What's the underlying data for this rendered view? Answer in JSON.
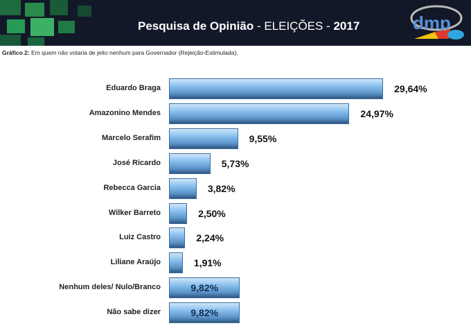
{
  "header": {
    "title_bold": "Pesquisa de Opinião",
    "title_rest": " - ELEIÇÕES - ",
    "year": "2017",
    "logo_text": "dmp"
  },
  "subtitle": {
    "label": "Gráfico 2:",
    "text": " Em quem não votaria de jeito nenhum para Governador (Rejeição-Estimulada)."
  },
  "chart_data": {
    "type": "bar",
    "orientation": "horizontal",
    "title": "Em quem não votaria de jeito nenhum para Governador (Rejeição-Estimulada)",
    "categories": [
      "Eduardo Braga",
      "Amazonino Mendes",
      "Marcelo Serafim",
      "José Ricardo",
      "Rebecca Garcia",
      "Wilker Barreto",
      "Luiz Castro",
      "Liliane Araújo",
      "Nenhum deles/ Nulo/Branco",
      "Não sabe dizer"
    ],
    "values": [
      29.64,
      24.97,
      9.55,
      5.73,
      3.82,
      2.5,
      2.24,
      1.91,
      9.82,
      9.82
    ],
    "labels": [
      "29,64%",
      "24,97%",
      "9,55%",
      "5,73%",
      "3,82%",
      "2,50%",
      "2,24%",
      "1,91%",
      "9,82%",
      "9,82%"
    ],
    "label_inside": [
      false,
      false,
      false,
      false,
      false,
      false,
      false,
      false,
      true,
      true
    ],
    "unit": "%",
    "grid": false,
    "legend": "none"
  }
}
